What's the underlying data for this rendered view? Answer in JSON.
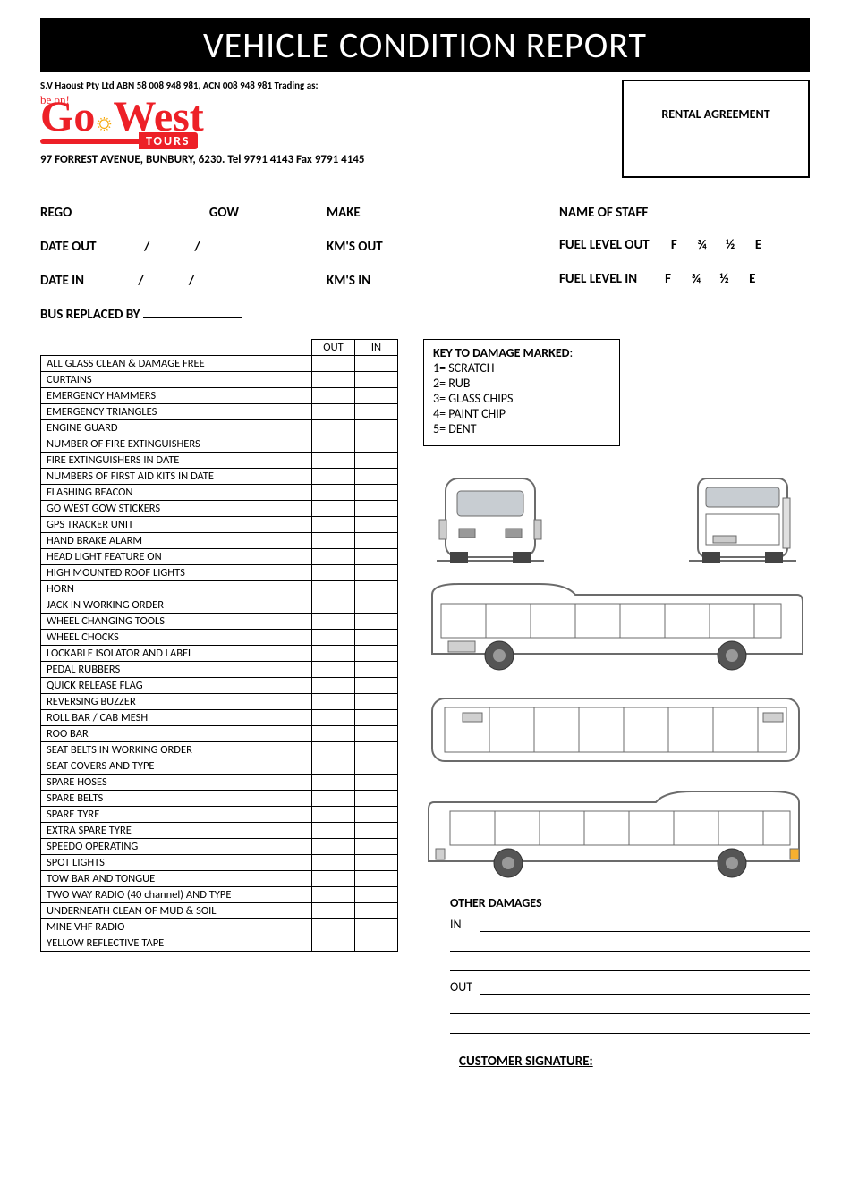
{
  "title": "VEHICLE CONDITION REPORT",
  "company": {
    "legal": "S.V Haoust Pty Ltd ABN 58 008 948 981, ACN 008 948 981 Trading as:",
    "logo_script": "be on!",
    "logo_go": "Go",
    "logo_west": "West",
    "logo_tours": "TOURS",
    "sun_glyph": "☼",
    "address": "97 FORREST AVENUE, BUNBURY, 6230. Tel 9791 4143 Fax 9791 4145"
  },
  "agreement_box": "RENTAL AGREEMENT",
  "fields": {
    "rego": "REGO",
    "gow": "GOW",
    "make": "MAKE",
    "staff": "NAME OF STAFF",
    "date_out": "DATE OUT",
    "kms_out": "KM'S OUT",
    "fuel_out": "FUEL LEVEL OUT",
    "date_in": "DATE IN",
    "kms_in": "KM'S IN",
    "fuel_in": "FUEL LEVEL IN",
    "bus_replaced": "BUS REPLACED BY",
    "fuel_opts": [
      "F",
      "¾",
      "½",
      "E"
    ],
    "slash": "/"
  },
  "checklist": {
    "head_out": "OUT",
    "head_in": "IN",
    "items": [
      "ALL GLASS CLEAN & DAMAGE FREE",
      "CURTAINS",
      "EMERGENCY HAMMERS",
      "EMERGENCY TRIANGLES",
      "ENGINE GUARD",
      "NUMBER OF FIRE EXTINGUISHERS",
      "FIRE EXTINGUISHERS IN DATE",
      "NUMBERS OF FIRST AID KITS IN DATE",
      "FLASHING BEACON",
      "GO WEST GOW STICKERS",
      "GPS TRACKER UNIT",
      "HAND BRAKE ALARM",
      "HEAD LIGHT FEATURE ON",
      "HIGH MOUNTED ROOF LIGHTS",
      "HORN",
      "JACK IN WORKING ORDER",
      "WHEEL CHANGING TOOLS",
      "WHEEL CHOCKS",
      "LOCKABLE ISOLATOR AND LABEL",
      "PEDAL RUBBERS",
      "QUICK RELEASE FLAG",
      "REVERSING BUZZER",
      "ROLL BAR / CAB MESH",
      "ROO BAR",
      "SEAT BELTS IN WORKING ORDER",
      "SEAT COVERS AND TYPE",
      "SPARE HOSES",
      "SPARE BELTS",
      "SPARE TYRE",
      "EXTRA SPARE TYRE",
      "SPEEDO OPERATING",
      "SPOT LIGHTS",
      "TOW BAR AND TONGUE",
      "TWO WAY RADIO (40 channel) AND TYPE",
      "UNDERNEATH CLEAN OF MUD & SOIL",
      "MINE VHF RADIO",
      "YELLOW REFLECTIVE TAPE"
    ]
  },
  "key": {
    "title": "KEY TO DAMAGE MARKED",
    "items": [
      "1= SCRATCH",
      "2= RUB",
      "3= GLASS CHIPS",
      "4= PAINT CHIP",
      "5= DENT"
    ]
  },
  "diagram": {
    "stroke": "#6b6b6b",
    "fill": "#e8e8e8",
    "wheel_fill": "#555",
    "wheel_hub": "#999",
    "window_fill": "#c8cdd2"
  },
  "other": {
    "title": "OTHER DAMAGES",
    "in": "IN",
    "out": "OUT"
  },
  "signature": "CUSTOMER SIGNATURE:"
}
